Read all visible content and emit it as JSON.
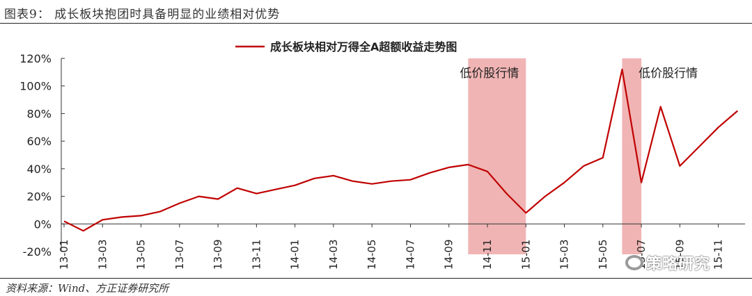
{
  "figure": {
    "title": "图表9：   成长板块抱团时具备明显的业绩相对优势",
    "source": "资料来源：Wind、方正证券研究所",
    "watermark": "策略研究"
  },
  "chart_data": {
    "type": "line",
    "title": "",
    "xlabel": "",
    "ylabel": "",
    "ylim": [
      -20,
      120
    ],
    "y_ticks": [
      "120%",
      "100%",
      "80%",
      "60%",
      "40%",
      "20%",
      "0%",
      "-20%"
    ],
    "x_ticks": [
      "13-01",
      "13-03",
      "13-05",
      "13-07",
      "13-09",
      "13-11",
      "14-01",
      "14-03",
      "14-05",
      "14-07",
      "14-09",
      "14-11",
      "15-01",
      "15-03",
      "15-05",
      "15-07",
      "15-09",
      "15-11"
    ],
    "legend": "top-center",
    "grid": false,
    "colors": {
      "line": "#c00000",
      "band": "#f0b4b4"
    },
    "series": [
      {
        "name": "成长板块相对万得全A超额收益走势图",
        "x": [
          "13-01",
          "13-02",
          "13-03",
          "13-04",
          "13-05",
          "13-06",
          "13-07",
          "13-08",
          "13-09",
          "13-10",
          "13-11",
          "13-12",
          "14-01",
          "14-02",
          "14-03",
          "14-04",
          "14-05",
          "14-06",
          "14-07",
          "14-08",
          "14-09",
          "14-10",
          "14-11",
          "14-12",
          "15-01",
          "15-02",
          "15-03",
          "15-04",
          "15-05",
          "15-06",
          "15-07",
          "15-08",
          "15-09",
          "15-10",
          "15-11",
          "15-12"
        ],
        "values": [
          2,
          -5,
          3,
          5,
          6,
          9,
          15,
          20,
          18,
          26,
          22,
          25,
          28,
          33,
          35,
          31,
          29,
          31,
          32,
          37,
          41,
          43,
          38,
          22,
          8,
          20,
          30,
          42,
          48,
          112,
          30,
          85,
          42,
          56,
          70,
          82
        ]
      }
    ],
    "shaded_periods": [
      {
        "label": "低价股行情",
        "start": "14-10",
        "end": "15-01"
      },
      {
        "label": "低价股行情",
        "start": "15-06",
        "end": "15-07"
      }
    ]
  }
}
